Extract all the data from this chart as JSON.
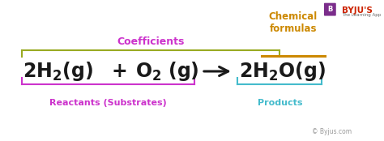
{
  "bg_color": "#ffffff",
  "equation_color": "#1a1a1a",
  "reactants_color": "#cc33cc",
  "products_color": "#44bbcc",
  "coeff_color": "#cc33cc",
  "chem_formula_color": "#cc8800",
  "arrow_color": "#1a1a1a",
  "bracket_reactants_color": "#cc33cc",
  "bracket_products_color": "#44bbcc",
  "bracket_coeff_color": "#99aa22",
  "reactants_label": "Reactants (Substrates)",
  "products_label": "Products",
  "coeff_label": "Coefficients",
  "chem_formula_label": "Chemical\nformulas",
  "byju_watermark": "© Byjus.com"
}
